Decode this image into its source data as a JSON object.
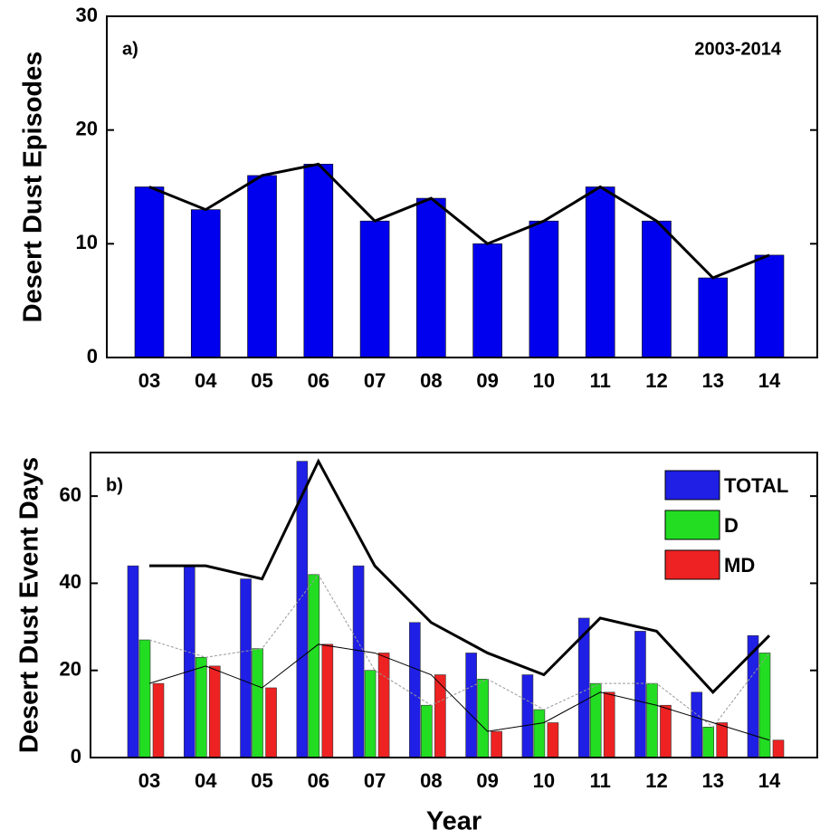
{
  "chart_data": [
    {
      "type": "bar",
      "ylabel": "Desert Dust Episodes",
      "panel_label": "a)",
      "annotation": "2003-2014",
      "categories": [
        "03",
        "04",
        "05",
        "06",
        "07",
        "08",
        "09",
        "10",
        "11",
        "12",
        "13",
        "14"
      ],
      "values": [
        15,
        13,
        16,
        17,
        12,
        14,
        10,
        12,
        15,
        12,
        7,
        9
      ],
      "color": "#0000ee",
      "line_overlay": true,
      "line_color": "#000000",
      "ylim": [
        0,
        30
      ],
      "yticks": [
        0,
        10,
        20,
        30
      ]
    },
    {
      "type": "bar",
      "ylabel": "Desert Dust Event Days",
      "xlabel": "Year",
      "panel_label": "b)",
      "categories": [
        "03",
        "04",
        "05",
        "06",
        "07",
        "08",
        "09",
        "10",
        "11",
        "12",
        "13",
        "14"
      ],
      "series": [
        {
          "name": "TOTAL",
          "color": "#1f1fe6",
          "values": [
            44,
            44,
            41,
            68,
            44,
            31,
            24,
            19,
            32,
            29,
            15,
            28
          ]
        },
        {
          "name": "D",
          "color": "#22dd22",
          "values": [
            27,
            23,
            25,
            42,
            20,
            12,
            18,
            11,
            17,
            17,
            7,
            24
          ]
        },
        {
          "name": "MD",
          "color": "#ee2222",
          "values": [
            17,
            21,
            16,
            26,
            24,
            19,
            6,
            8,
            15,
            12,
            8,
            4
          ]
        }
      ],
      "line_overlay": true,
      "legend": "upper right",
      "ylim": [
        0,
        70
      ],
      "yticks": [
        0,
        20,
        40,
        60
      ]
    }
  ]
}
